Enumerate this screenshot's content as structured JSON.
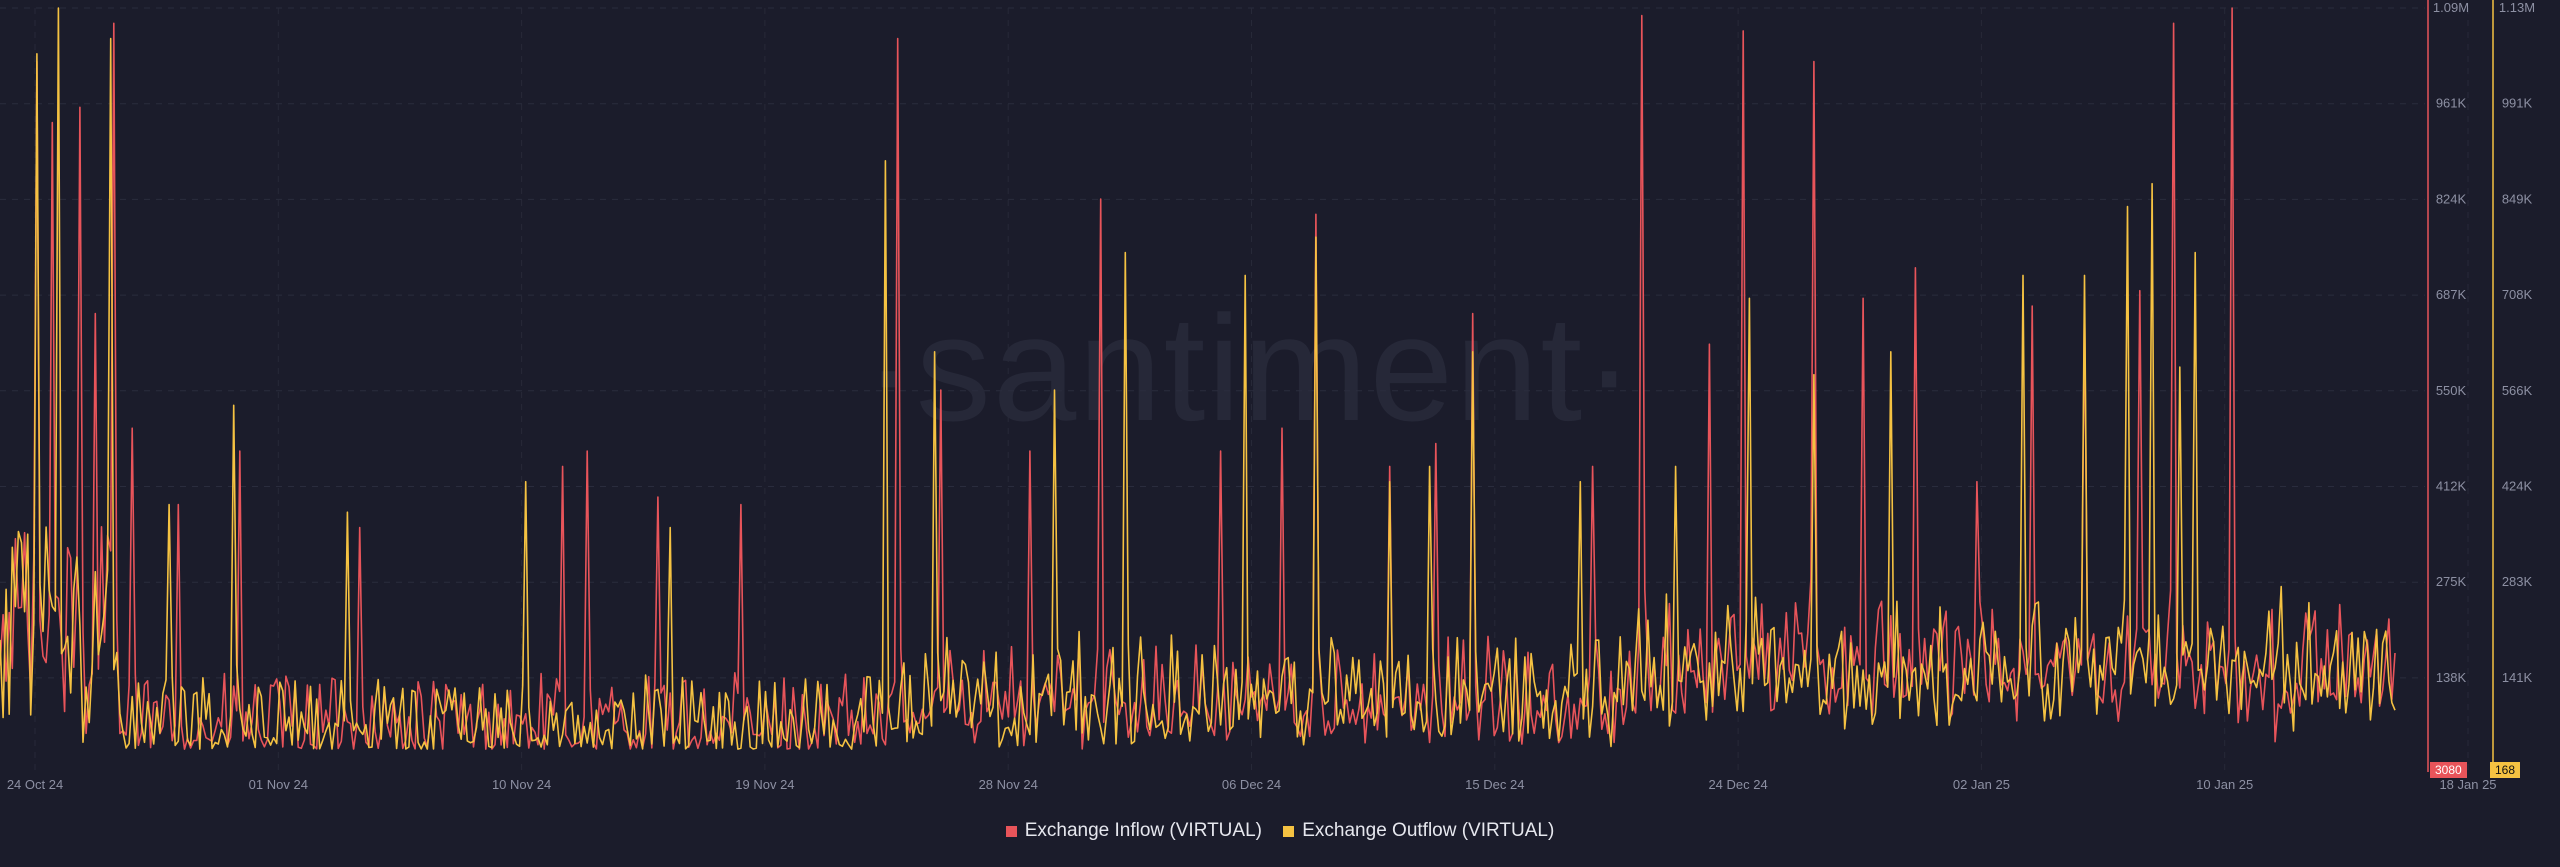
{
  "watermark": "·santiment·",
  "chart_data": {
    "type": "line",
    "x_ticks": [
      "24 Oct 24",
      "01 Nov 24",
      "10 Nov 24",
      "19 Nov 24",
      "28 Nov 24",
      "06 Dec 24",
      "15 Dec 24",
      "24 Dec 24",
      "02 Jan 25",
      "10 Jan 25",
      "18 Jan 25"
    ],
    "y_left_ticks": [
      "1.09M",
      "961K",
      "824K",
      "687K",
      "550K",
      "412K",
      "275K",
      "138K"
    ],
    "y_right_ticks": [
      "1.13M",
      "991K",
      "849K",
      "708K",
      "566K",
      "424K",
      "283K",
      "141K"
    ],
    "y_left_range": [
      0,
      1090000
    ],
    "y_right_range": [
      0,
      1130000
    ],
    "grid": true,
    "legend_position": "bottom-center",
    "series": [
      {
        "name": "Exchange Inflow (VIRTUAL)",
        "color": "#e8545a",
        "axis": "left",
        "last_value": "3080",
        "peaks": [
          [
            0.015,
            0.2
          ],
          [
            0.015,
            0.93
          ],
          [
            0.022,
            0.85
          ],
          [
            0.033,
            0.87
          ],
          [
            0.04,
            0.6
          ],
          [
            0.047,
            0.98
          ],
          [
            0.055,
            0.45
          ],
          [
            0.075,
            0.35
          ],
          [
            0.1,
            0.42
          ],
          [
            0.15,
            0.32
          ],
          [
            0.235,
            0.4
          ],
          [
            0.245,
            0.42
          ],
          [
            0.275,
            0.36
          ],
          [
            0.31,
            0.35
          ],
          [
            0.375,
            0.96
          ],
          [
            0.393,
            0.5
          ],
          [
            0.43,
            0.42
          ],
          [
            0.46,
            0.75
          ],
          [
            0.51,
            0.42
          ],
          [
            0.535,
            0.45
          ],
          [
            0.55,
            0.73
          ],
          [
            0.58,
            0.4
          ],
          [
            0.6,
            0.43
          ],
          [
            0.615,
            0.6
          ],
          [
            0.665,
            0.4
          ],
          [
            0.685,
            0.99
          ],
          [
            0.714,
            0.56
          ],
          [
            0.728,
            0.97
          ],
          [
            0.757,
            0.93
          ],
          [
            0.778,
            0.62
          ],
          [
            0.8,
            0.66
          ],
          [
            0.825,
            0.38
          ],
          [
            0.848,
            0.61
          ],
          [
            0.87,
            0.62
          ],
          [
            0.893,
            0.63
          ],
          [
            0.907,
            0.98
          ],
          [
            0.932,
            1.0
          ]
        ]
      },
      {
        "name": "Exchange Outflow (VIRTUAL)",
        "color": "#f5c242",
        "axis": "right",
        "last_value": "168",
        "peaks": [
          [
            0.015,
            0.94
          ],
          [
            0.024,
            1.0
          ],
          [
            0.046,
            0.96
          ],
          [
            0.07,
            0.35
          ],
          [
            0.098,
            0.48
          ],
          [
            0.145,
            0.34
          ],
          [
            0.22,
            0.38
          ],
          [
            0.28,
            0.32
          ],
          [
            0.37,
            0.8
          ],
          [
            0.39,
            0.55
          ],
          [
            0.44,
            0.5
          ],
          [
            0.47,
            0.68
          ],
          [
            0.52,
            0.65
          ],
          [
            0.55,
            0.7
          ],
          [
            0.58,
            0.38
          ],
          [
            0.597,
            0.4
          ],
          [
            0.615,
            0.55
          ],
          [
            0.66,
            0.38
          ],
          [
            0.7,
            0.4
          ],
          [
            0.73,
            0.62
          ],
          [
            0.758,
            0.52
          ],
          [
            0.79,
            0.55
          ],
          [
            0.845,
            0.65
          ],
          [
            0.87,
            0.65
          ],
          [
            0.888,
            0.74
          ],
          [
            0.898,
            0.77
          ],
          [
            0.91,
            0.53
          ],
          [
            0.916,
            0.68
          ]
        ]
      }
    ]
  }
}
